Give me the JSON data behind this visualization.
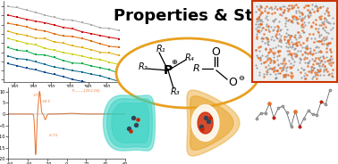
{
  "title": "Properties & Structures",
  "title_fontsize": 13,
  "title_bold": true,
  "bg_color": "#ffffff",
  "ellipse_color": "#E8A020",
  "ellipse_lw": 2.0,
  "r_labels": [
    "R₁",
    "R₂",
    "R₃",
    "R₄"
  ],
  "cation_charge": "⊕",
  "anion_charge": "⊖",
  "scatter_colors": [
    "#aaaaaa",
    "#cc0000",
    "#dd6600",
    "#ddaa00",
    "#cccc00",
    "#00aa44",
    "#006688",
    "#004488"
  ],
  "dsc_color": "#E8702A",
  "orange_dot_color": "#E8702A",
  "gray_dot_color": "#888888",
  "box_border_color": "#cc3300",
  "cyan_color": "#30D0C0",
  "orange_orb_color": "#E8A020",
  "red_blob_color": "#cc2200"
}
